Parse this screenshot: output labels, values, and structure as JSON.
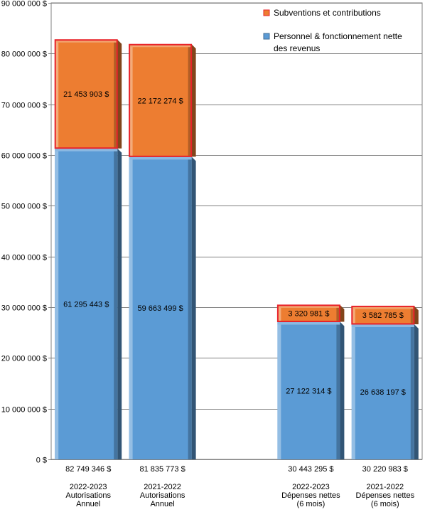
{
  "chart_data": {
    "type": "bar",
    "stacked": true,
    "title": "",
    "xlabel": "",
    "ylabel": "",
    "ylim": [
      0,
      90000000
    ],
    "y_ticks": [
      {
        "value": 0,
        "label": "0 $"
      },
      {
        "value": 10000000,
        "label": "10 000 000 $"
      },
      {
        "value": 20000000,
        "label": "20 000 000 $"
      },
      {
        "value": 30000000,
        "label": "30 000 000 $"
      },
      {
        "value": 40000000,
        "label": "40 000 000 $"
      },
      {
        "value": 50000000,
        "label": "50 000 000 $"
      },
      {
        "value": 60000000,
        "label": "60 000 000 $"
      },
      {
        "value": 70000000,
        "label": "70 000 000 $"
      },
      {
        "value": 80000000,
        "label": "80 000 000 $"
      },
      {
        "value": 90000000,
        "label": "90 000 000 $"
      }
    ],
    "grid": true,
    "legend_position": "top-right",
    "categories": [
      [
        "2022-2023",
        "Autorisations",
        "Annuel"
      ],
      [
        "2021-2022",
        "Autorisations",
        "Annuel"
      ],
      [
        "2022-2023",
        "Dépenses nettes",
        "(6 mois)"
      ],
      [
        "2021-2022",
        "Dépenses nettes",
        "(6 mois)"
      ]
    ],
    "category_slots": [
      0,
      1,
      3,
      4
    ],
    "category_count": 5,
    "totals": [
      {
        "value": 82749346,
        "label": "82 749 346 $"
      },
      {
        "value": 81835773,
        "label": "81 835 773 $"
      },
      {
        "value": 30443295,
        "label": "30 443 295 $"
      },
      {
        "value": 30220983,
        "label": "30 220 983 $"
      }
    ],
    "series": [
      {
        "name": "Personnel & fonctionnement nette des revenus",
        "legend_lines": [
          "Personnel & fonctionnement nette",
          "des revenus"
        ],
        "color": "#5b9bd5",
        "values": [
          61295443,
          59663499,
          27122314,
          26638197
        ],
        "labels": [
          "61 295 443 $",
          "59 663 499 $",
          "27 122 314 $",
          "26 638 197 $"
        ]
      },
      {
        "name": "Subventions et contributions",
        "legend_lines": [
          "Subventions et contributions"
        ],
        "color": "#ed7d31",
        "border": "#e8232a",
        "values": [
          21453903,
          22172274,
          3320981,
          3582785
        ],
        "labels": [
          "21 453 903 $",
          "22 172 274 $",
          "3 320 981 $",
          "3 582 785 $"
        ]
      }
    ]
  }
}
